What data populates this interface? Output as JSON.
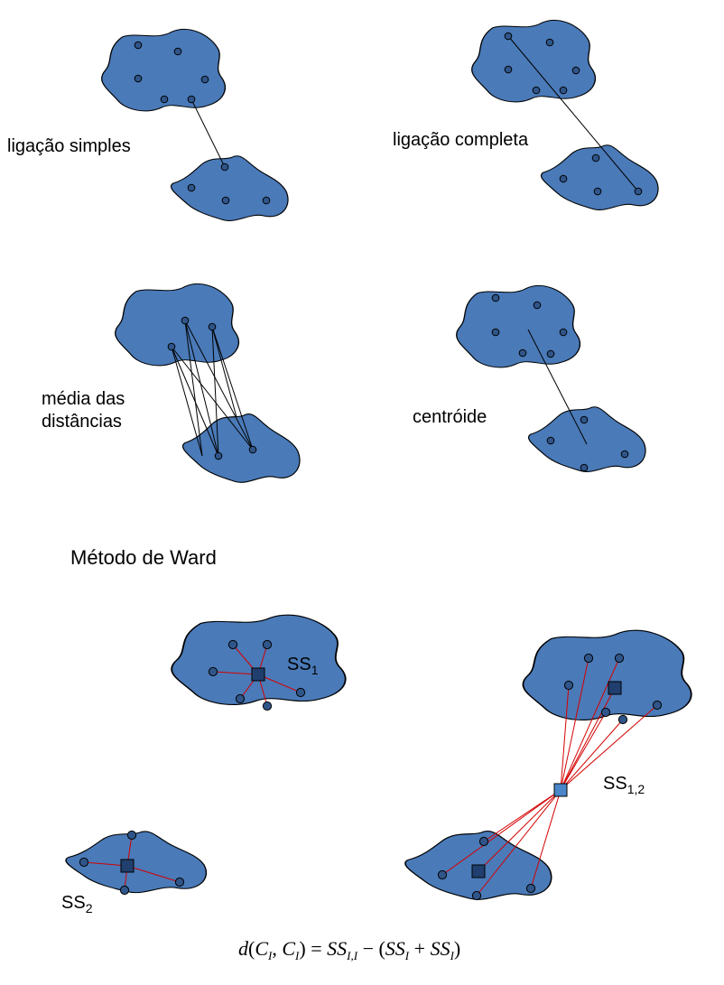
{
  "colors": {
    "cluster_fill": "#4a7ab8",
    "outline": "#000000",
    "point_fill": "#2f5589",
    "centroid_fill": "#203f6e",
    "ward_line": "#d40000",
    "merged_centroid_fill": "#4a86c8"
  },
  "labels": {
    "single": "ligação simples",
    "complete": "ligação completa",
    "average_line1": "média das",
    "average_line2": "distâncias",
    "centroid": "centróide",
    "ward_title": "Método de Ward",
    "ss": "SS",
    "ss1_sub": "1",
    "ss2_sub": "2",
    "ss12_sub": "1,2"
  },
  "formula": {
    "d": "d",
    "open": "(",
    "c": "C",
    "i": "I",
    "comma": ", ",
    "close": ")",
    "eq": " = ",
    "ss": "SS",
    "sub_both": "I,I",
    "minus": " − (",
    "plus": " + ",
    "end": ")"
  }
}
